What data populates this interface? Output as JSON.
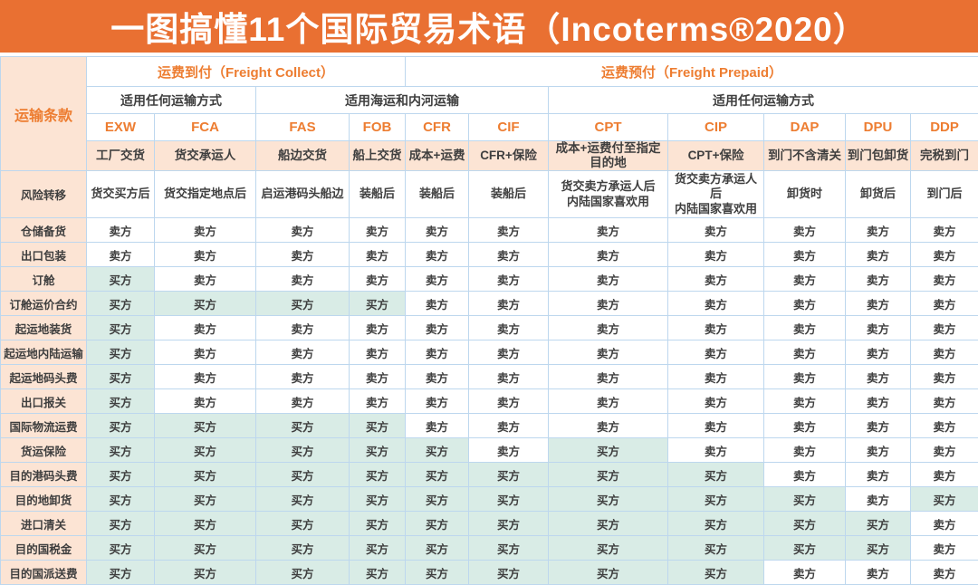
{
  "title": "一图搞懂11个国际贸易术语（Incoterms®2020）",
  "colors": {
    "orange_band": "#E97032",
    "orange_text": "#ED7D31",
    "peach_bg": "#FCE4D4",
    "buyer_green_bg": "#D9ECE6",
    "grid_border": "#BDD7EE",
    "cell_text": "#3F3F3F",
    "title_text": "#FFFFFF"
  },
  "table": {
    "corner_label": "运输条款",
    "freight_groups": [
      {
        "label": "运费到付（Freight Collect）",
        "span": 4
      },
      {
        "label": "运费预付（Freight Prepaid）",
        "span": 7
      }
    ],
    "mode_groups": [
      {
        "label": "适用任何运输方式",
        "span": 2
      },
      {
        "label": "适用海运和内河运输",
        "span": 4
      },
      {
        "label": "适用任何运输方式",
        "span": 5
      }
    ],
    "terms": [
      "EXW",
      "FCA",
      "FAS",
      "FOB",
      "CFR",
      "CIF",
      "CPT",
      "CIP",
      "DAP",
      "DPU",
      "DDP"
    ],
    "descriptions": [
      "工厂交货",
      "货交承运人",
      "船边交货",
      "船上交货",
      "成本+运费",
      "CFR+保险",
      "成本+运费付至指定目的地",
      "CPT+保险",
      "到门不含清关",
      "到门包卸货",
      "完税到门"
    ],
    "risk_row": {
      "label": "风险转移",
      "values": [
        "货交买方后",
        "货交指定地点后",
        "启运港码头船边",
        "装船后",
        "装船后",
        "装船后",
        "货交卖方承运人后\n内陆国家喜欢用",
        "货交卖方承运人后\n内陆国家喜欢用",
        "卸货时",
        "卸货后",
        "到门后"
      ]
    },
    "parties": {
      "buyer": "买方",
      "seller": "卖方"
    },
    "rows": [
      {
        "label": "仓储备货",
        "cells": [
          "seller",
          "seller",
          "seller",
          "seller",
          "seller",
          "seller",
          "seller",
          "seller",
          "seller",
          "seller",
          "seller"
        ]
      },
      {
        "label": "出口包装",
        "cells": [
          "seller",
          "seller",
          "seller",
          "seller",
          "seller",
          "seller",
          "seller",
          "seller",
          "seller",
          "seller",
          "seller"
        ]
      },
      {
        "label": "订舱",
        "cells": [
          "buyer",
          "seller",
          "seller",
          "seller",
          "seller",
          "seller",
          "seller",
          "seller",
          "seller",
          "seller",
          "seller"
        ]
      },
      {
        "label": "订舱运价合约",
        "cells": [
          "buyer",
          "buyer",
          "buyer",
          "buyer",
          "seller",
          "seller",
          "seller",
          "seller",
          "seller",
          "seller",
          "seller"
        ]
      },
      {
        "label": "起运地装货",
        "cells": [
          "buyer",
          "seller",
          "seller",
          "seller",
          "seller",
          "seller",
          "seller",
          "seller",
          "seller",
          "seller",
          "seller"
        ]
      },
      {
        "label": "起运地内陆运输",
        "cells": [
          "buyer",
          "seller",
          "seller",
          "seller",
          "seller",
          "seller",
          "seller",
          "seller",
          "seller",
          "seller",
          "seller"
        ]
      },
      {
        "label": "起运地码头费",
        "cells": [
          "buyer",
          "seller",
          "seller",
          "seller",
          "seller",
          "seller",
          "seller",
          "seller",
          "seller",
          "seller",
          "seller"
        ]
      },
      {
        "label": "出口报关",
        "cells": [
          "buyer",
          "seller",
          "seller",
          "seller",
          "seller",
          "seller",
          "seller",
          "seller",
          "seller",
          "seller",
          "seller"
        ]
      },
      {
        "label": "国际物流运费",
        "cells": [
          "buyer",
          "buyer",
          "buyer",
          "buyer",
          "seller",
          "seller",
          "seller",
          "seller",
          "seller",
          "seller",
          "seller"
        ]
      },
      {
        "label": "货运保险",
        "cells": [
          "buyer",
          "buyer",
          "buyer",
          "buyer",
          "buyer",
          "seller",
          "buyer",
          "seller",
          "seller",
          "seller",
          "seller"
        ]
      },
      {
        "label": "目的港码头费",
        "cells": [
          "buyer",
          "buyer",
          "buyer",
          "buyer",
          "buyer",
          "buyer",
          "buyer",
          "buyer",
          "seller",
          "seller",
          "seller"
        ]
      },
      {
        "label": "目的地卸货",
        "cells": [
          "buyer",
          "buyer",
          "buyer",
          "buyer",
          "buyer",
          "buyer",
          "buyer",
          "buyer",
          "buyer",
          "seller",
          "buyer"
        ]
      },
      {
        "label": "进口清关",
        "cells": [
          "buyer",
          "buyer",
          "buyer",
          "buyer",
          "buyer",
          "buyer",
          "buyer",
          "buyer",
          "buyer",
          "buyer",
          "seller"
        ]
      },
      {
        "label": "目的国税金",
        "cells": [
          "buyer",
          "buyer",
          "buyer",
          "buyer",
          "buyer",
          "buyer",
          "buyer",
          "buyer",
          "buyer",
          "buyer",
          "seller"
        ]
      },
      {
        "label": "目的国派送费",
        "cells": [
          "buyer",
          "buyer",
          "buyer",
          "buyer",
          "buyer",
          "buyer",
          "buyer",
          "buyer",
          "seller",
          "seller",
          "seller"
        ]
      }
    ]
  }
}
